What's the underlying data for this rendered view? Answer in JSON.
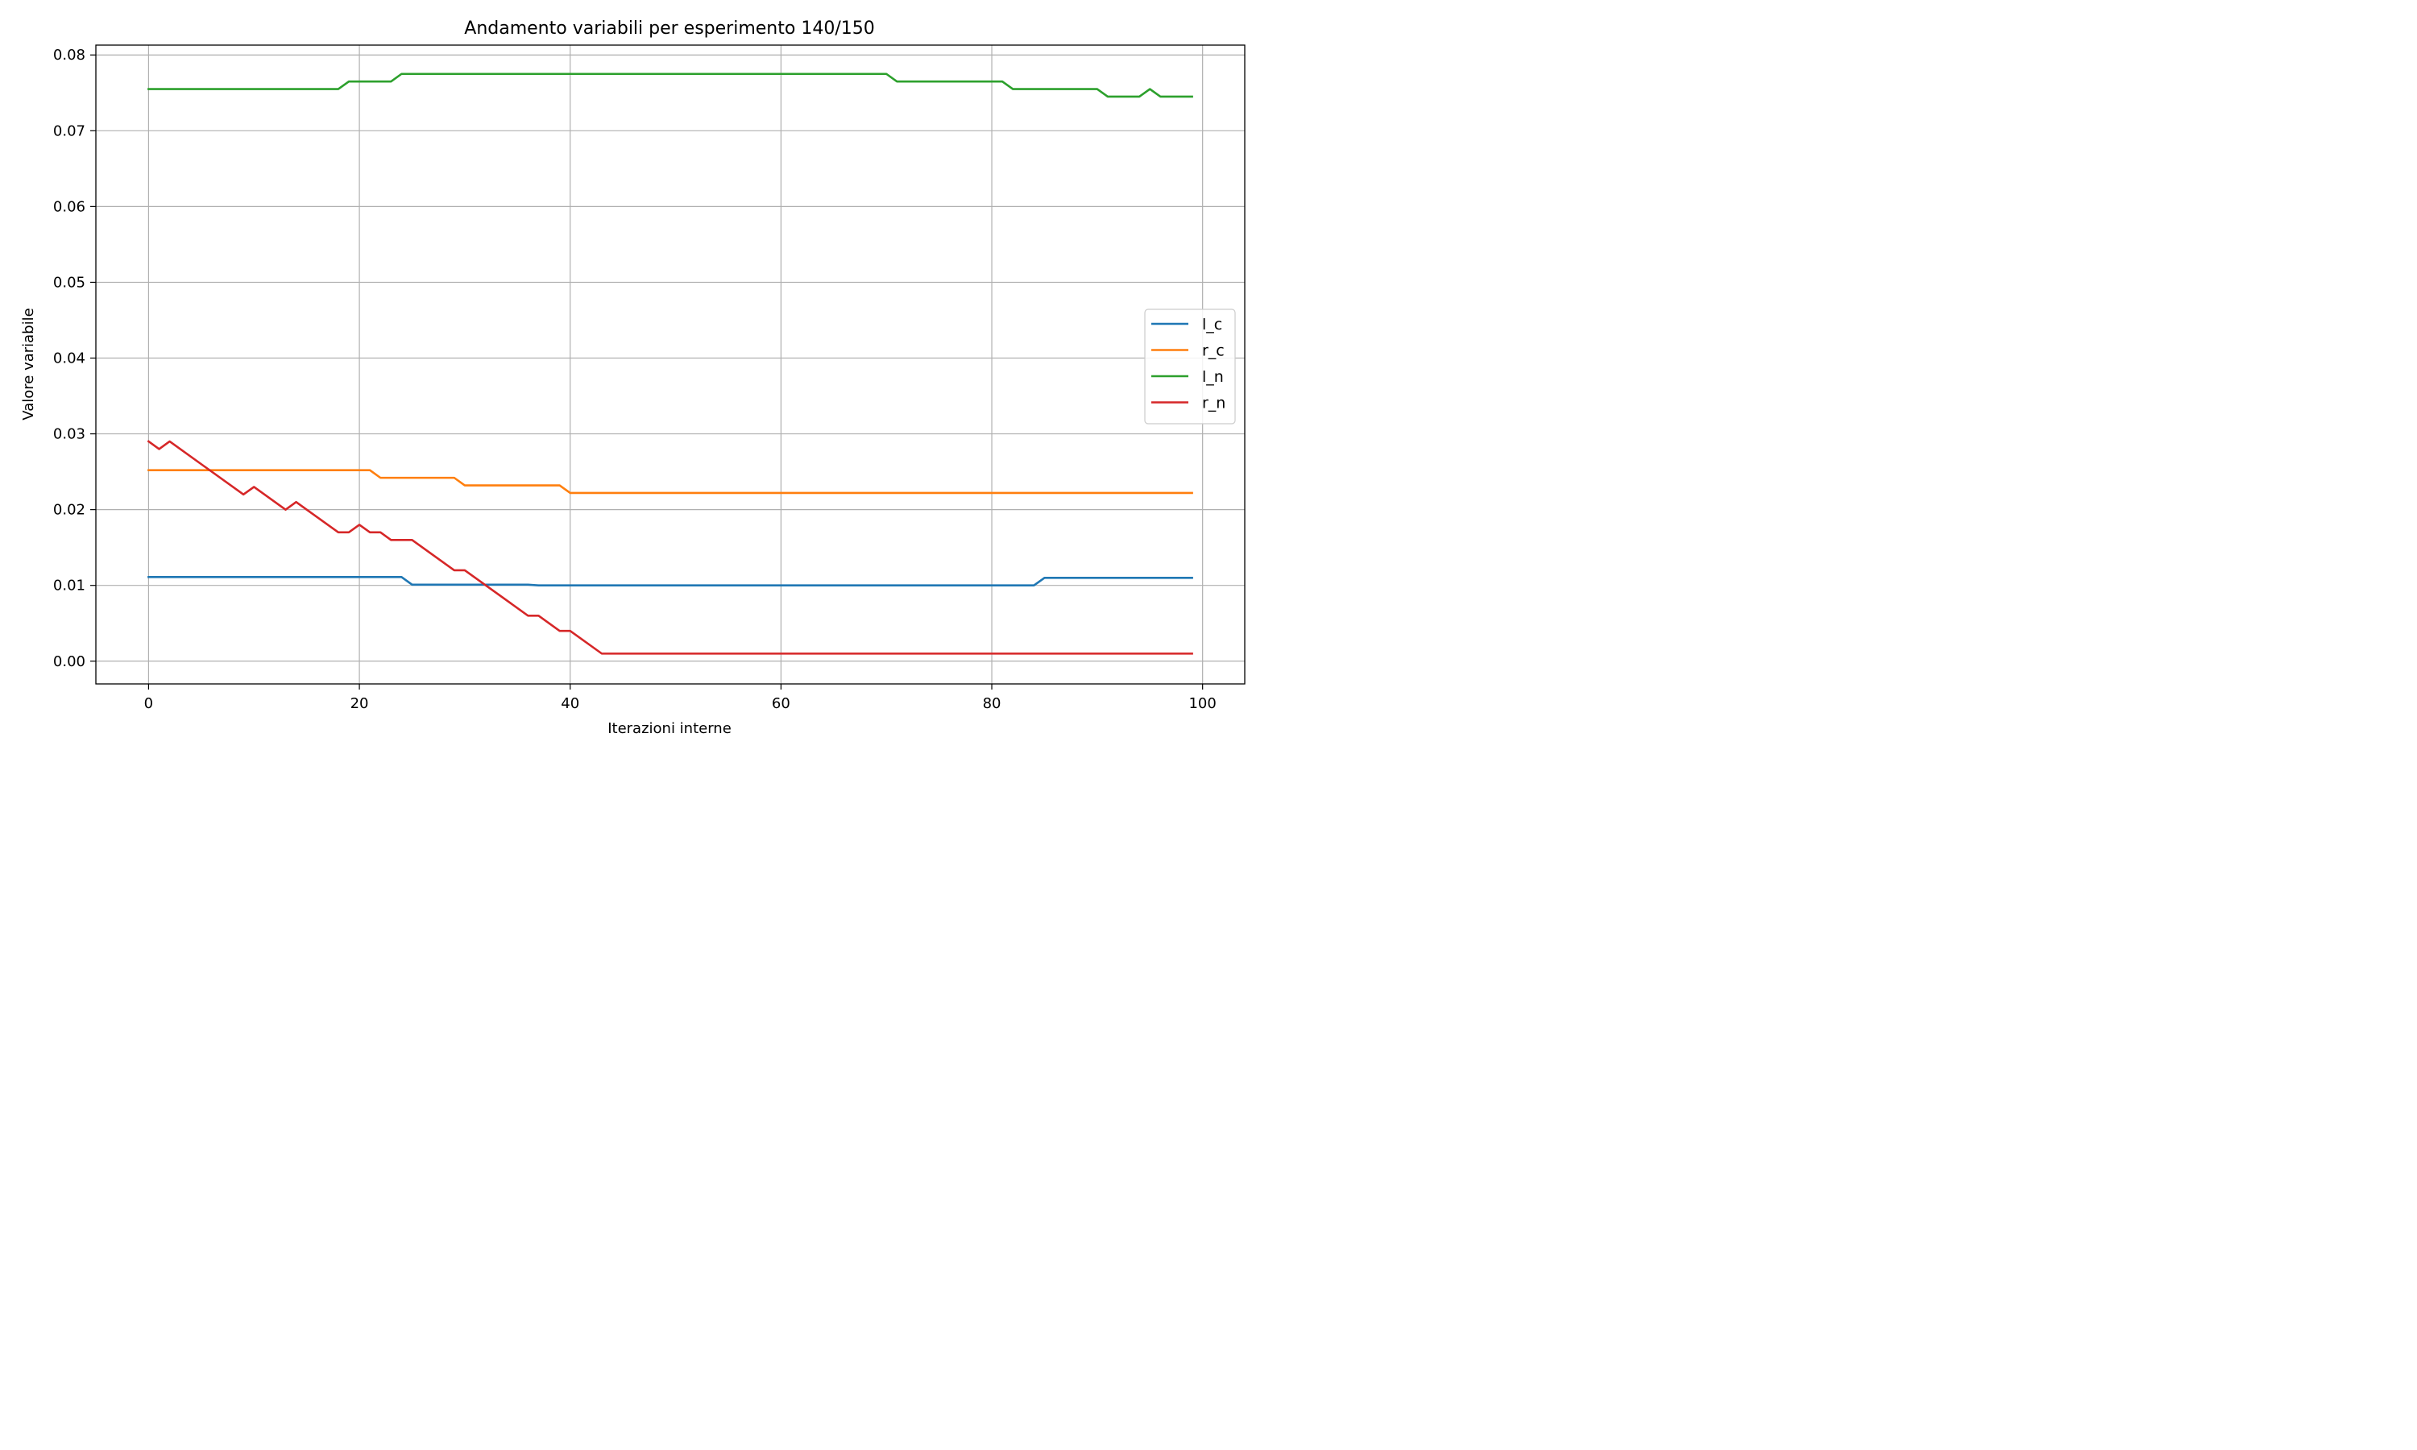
{
  "chart_data": {
    "type": "line",
    "title": "Andamento variabili per esperimento 140/150",
    "xlabel": "Iterazioni interne",
    "ylabel": "Valore variabile",
    "xlim": [
      -5,
      104
    ],
    "ylim": [
      -0.003,
      0.0813
    ],
    "xticks": [
      0,
      20,
      40,
      60,
      80,
      100
    ],
    "xtick_labels": [
      "0",
      "20",
      "40",
      "60",
      "80",
      "100"
    ],
    "yticks": [
      0.0,
      0.01,
      0.02,
      0.03,
      0.04,
      0.05,
      0.06,
      0.07,
      0.08
    ],
    "ytick_labels": [
      "0.00",
      "0.01",
      "0.02",
      "0.03",
      "0.04",
      "0.05",
      "0.06",
      "0.07",
      "0.08"
    ],
    "grid": true,
    "legend_position": "right",
    "series": [
      {
        "name": "l_c",
        "color": "#1f77b4",
        "points": [
          [
            0,
            0.0111
          ],
          [
            24,
            0.0111
          ],
          [
            25,
            0.0101
          ],
          [
            36,
            0.0101
          ],
          [
            37,
            0.01
          ],
          [
            84,
            0.01
          ],
          [
            85,
            0.011
          ],
          [
            99,
            0.011
          ]
        ]
      },
      {
        "name": "r_c",
        "color": "#ff7f0e",
        "points": [
          [
            0,
            0.0252
          ],
          [
            21,
            0.0252
          ],
          [
            22,
            0.0242
          ],
          [
            29,
            0.0242
          ],
          [
            30,
            0.0232
          ],
          [
            39,
            0.0232
          ],
          [
            40,
            0.0222
          ],
          [
            99,
            0.0222
          ]
        ]
      },
      {
        "name": "l_n",
        "color": "#2ca02c",
        "points": [
          [
            0,
            0.0755
          ],
          [
            18,
            0.0755
          ],
          [
            19,
            0.0765
          ],
          [
            23,
            0.0765
          ],
          [
            24,
            0.0775
          ],
          [
            70,
            0.0775
          ],
          [
            71,
            0.0765
          ],
          [
            81,
            0.0765
          ],
          [
            82,
            0.0755
          ],
          [
            90,
            0.0755
          ],
          [
            91,
            0.0745
          ],
          [
            94,
            0.0745
          ],
          [
            95,
            0.0755
          ],
          [
            96,
            0.0745
          ],
          [
            99,
            0.0745
          ]
        ]
      },
      {
        "name": "r_n",
        "color": "#d62728",
        "points": [
          [
            0,
            0.029
          ],
          [
            1,
            0.028
          ],
          [
            2,
            0.029
          ],
          [
            9,
            0.022
          ],
          [
            10,
            0.023
          ],
          [
            13,
            0.02
          ],
          [
            14,
            0.021
          ],
          [
            18,
            0.017
          ],
          [
            19,
            0.017
          ],
          [
            20,
            0.018
          ],
          [
            21,
            0.017
          ],
          [
            22,
            0.017
          ],
          [
            23,
            0.016
          ],
          [
            25,
            0.016
          ],
          [
            29,
            0.012
          ],
          [
            30,
            0.012
          ],
          [
            36,
            0.006
          ],
          [
            37,
            0.006
          ],
          [
            39,
            0.004
          ],
          [
            40,
            0.004
          ],
          [
            43,
            0.001
          ],
          [
            99,
            0.001
          ]
        ]
      }
    ]
  }
}
